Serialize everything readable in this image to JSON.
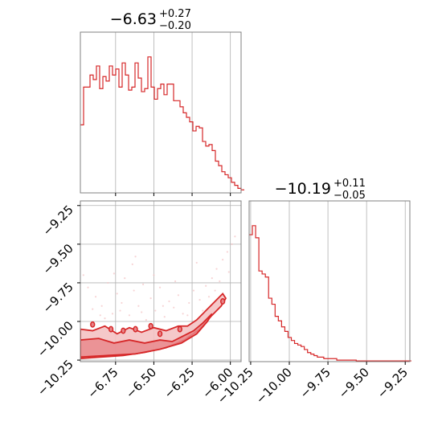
{
  "colors": {
    "series": "#d62728",
    "fill_light": "#f4c2c3",
    "fill_mid": "#e8868a",
    "grid": "#b0b0b0",
    "spine": "#808080"
  },
  "chart_data": [
    {
      "type": "histogram",
      "panel": "marginal-x",
      "title": {
        "value": "−6.63",
        "upper": "+0.27",
        "lower": "−0.20"
      },
      "xlim": [
        -6.98,
        -5.93
      ],
      "xticks": [
        -6.75,
        -6.5,
        -6.25,
        -6.0
      ],
      "yticks": [],
      "grid": true,
      "bins": {
        "start": -6.98,
        "width": 0.021
      },
      "values": [
        0.45,
        0.7,
        0.7,
        0.78,
        0.75,
        0.84,
        0.69,
        0.77,
        0.74,
        0.84,
        0.78,
        0.82,
        0.7,
        0.86,
        0.78,
        0.68,
        0.7,
        0.86,
        0.76,
        0.67,
        0.69,
        0.9,
        0.7,
        0.62,
        0.69,
        0.72,
        0.65,
        0.72,
        0.72,
        0.61,
        0.61,
        0.57,
        0.53,
        0.5,
        0.47,
        0.41,
        0.44,
        0.43,
        0.34,
        0.31,
        0.32,
        0.28,
        0.21,
        0.18,
        0.14,
        0.12,
        0.1,
        0.07,
        0.05,
        0.03,
        0.02
      ],
      "ylim": [
        0,
        1
      ]
    },
    {
      "type": "contour",
      "panel": "joint",
      "xlim": [
        -6.98,
        -5.93
      ],
      "ylim": [
        -10.26,
        -9.22
      ],
      "xticks": [
        -6.75,
        -6.5,
        -6.25,
        -6.0
      ],
      "xtick_labels": [
        "−6.75",
        "−6.50",
        "−6.25",
        "−6.00"
      ],
      "yticks": [
        -9.25,
        -9.5,
        -9.75,
        -10.0,
        -10.25
      ],
      "ytick_labels": [
        "−9.25",
        "−9.50",
        "−9.75",
        "−10.00",
        "−10.25"
      ],
      "grid": true,
      "contours": [
        {
          "level": "outer",
          "points": [
            [
              -6.98,
              -10.05
            ],
            [
              -6.9,
              -10.06
            ],
            [
              -6.82,
              -10.03
            ],
            [
              -6.74,
              -10.08
            ],
            [
              -6.66,
              -10.04
            ],
            [
              -6.58,
              -10.07
            ],
            [
              -6.5,
              -10.04
            ],
            [
              -6.42,
              -10.06
            ],
            [
              -6.34,
              -10.03
            ],
            [
              -6.28,
              -10.03
            ],
            [
              -6.22,
              -9.99
            ],
            [
              -6.16,
              -9.93
            ],
            [
              -6.1,
              -9.87
            ],
            [
              -6.05,
              -9.82
            ],
            [
              -6.03,
              -9.85
            ],
            [
              -6.06,
              -9.9
            ],
            [
              -6.12,
              -9.96
            ],
            [
              -6.2,
              -10.05
            ],
            [
              -6.3,
              -10.12
            ],
            [
              -6.42,
              -10.17
            ],
            [
              -6.56,
              -10.2
            ],
            [
              -6.7,
              -10.22
            ],
            [
              -6.84,
              -10.23
            ],
            [
              -6.98,
              -10.24
            ]
          ]
        },
        {
          "level": "inner",
          "points": [
            [
              -6.98,
              -10.12
            ],
            [
              -6.86,
              -10.11
            ],
            [
              -6.76,
              -10.14
            ],
            [
              -6.66,
              -10.12
            ],
            [
              -6.56,
              -10.14
            ],
            [
              -6.46,
              -10.12
            ],
            [
              -6.38,
              -10.13
            ],
            [
              -6.3,
              -10.09
            ],
            [
              -6.24,
              -10.06
            ],
            [
              -6.18,
              -10.01
            ],
            [
              -6.12,
              -9.95
            ],
            [
              -6.15,
              -10.0
            ],
            [
              -6.22,
              -10.08
            ],
            [
              -6.32,
              -10.14
            ],
            [
              -6.46,
              -10.18
            ],
            [
              -6.62,
              -10.21
            ],
            [
              -6.8,
              -10.22
            ],
            [
              -6.98,
              -10.23
            ]
          ]
        }
      ],
      "islands": [
        [
          -6.9,
          -10.02
        ],
        [
          -6.78,
          -10.05
        ],
        [
          -6.7,
          -10.06
        ],
        [
          -6.62,
          -10.05
        ],
        [
          -6.52,
          -10.03
        ],
        [
          -6.46,
          -10.08
        ],
        [
          -6.33,
          -10.05
        ],
        [
          -6.05,
          -9.87
        ]
      ],
      "scatter": [
        [
          -6.93,
          -9.78
        ],
        [
          -6.88,
          -9.84
        ],
        [
          -6.84,
          -9.9
        ],
        [
          -6.8,
          -9.75
        ],
        [
          -6.77,
          -9.95
        ],
        [
          -6.74,
          -9.82
        ],
        [
          -6.71,
          -9.88
        ],
        [
          -6.69,
          -9.72
        ],
        [
          -6.66,
          -9.96
        ],
        [
          -6.63,
          -9.8
        ],
        [
          -6.6,
          -9.9
        ],
        [
          -6.57,
          -9.76
        ],
        [
          -6.55,
          -9.99
        ],
        [
          -6.52,
          -9.85
        ],
        [
          -6.49,
          -9.93
        ],
        [
          -6.46,
          -9.78
        ],
        [
          -6.43,
          -9.97
        ],
        [
          -6.4,
          -9.87
        ],
        [
          -6.37,
          -9.91
        ],
        [
          -6.34,
          -9.83
        ],
        [
          -6.31,
          -9.95
        ],
        [
          -6.27,
          -9.88
        ],
        [
          -6.24,
          -9.8
        ],
        [
          -6.2,
          -9.86
        ],
        [
          -6.16,
          -9.77
        ],
        [
          -6.12,
          -9.72
        ],
        [
          -6.09,
          -9.66
        ],
        [
          -6.05,
          -9.6
        ],
        [
          -6.02,
          -9.55
        ],
        [
          -5.99,
          -9.5
        ],
        [
          -5.97,
          -9.45
        ],
        [
          -6.01,
          -9.68
        ],
        [
          -6.07,
          -9.74
        ],
        [
          -6.14,
          -9.84
        ],
        [
          -6.85,
          -9.96
        ],
        [
          -6.76,
          -9.69
        ],
        [
          -6.64,
          -9.63
        ],
        [
          -6.5,
          -9.7
        ],
        [
          -6.36,
          -9.74
        ],
        [
          -6.22,
          -9.62
        ],
        [
          -6.9,
          -9.92
        ],
        [
          -6.82,
          -9.98
        ],
        [
          -6.72,
          -9.93
        ],
        [
          -6.58,
          -9.94
        ],
        [
          -6.44,
          -9.9
        ],
        [
          -6.28,
          -9.96
        ],
        [
          -6.18,
          -9.93
        ],
        [
          -6.1,
          -9.8
        ],
        [
          -6.96,
          -9.7
        ],
        [
          -6.62,
          -9.58
        ]
      ]
    },
    {
      "type": "histogram",
      "panel": "marginal-y",
      "title": {
        "value": "−10.19",
        "upper": "+0.11",
        "lower": "−0.05"
      },
      "xlim": [
        -10.26,
        -9.22
      ],
      "xticks": [
        -10.25,
        -10.0,
        -9.75,
        -9.5,
        -9.25
      ],
      "xtick_labels": [
        "−10.25",
        "−10.00",
        "−9.75",
        "−9.50",
        "−9.25"
      ],
      "yticks": [],
      "grid": true,
      "bins": {
        "start": -10.26,
        "width": 0.021
      },
      "values": [
        0.84,
        0.9,
        0.82,
        0.6,
        0.58,
        0.56,
        0.42,
        0.38,
        0.3,
        0.27,
        0.23,
        0.2,
        0.16,
        0.14,
        0.12,
        0.11,
        0.1,
        0.08,
        0.06,
        0.05,
        0.04,
        0.03,
        0.03,
        0.02,
        0.02,
        0.02,
        0.02,
        0.01,
        0.01,
        0.01,
        0.01,
        0.01,
        0.01,
        0.005,
        0.005,
        0.005,
        0.005,
        0.005,
        0.005,
        0.005,
        0.005,
        0.005,
        0.005,
        0.005,
        0.005,
        0.005,
        0.005,
        0.005,
        0.005,
        0.005
      ],
      "ylim": [
        0,
        1
      ]
    }
  ]
}
